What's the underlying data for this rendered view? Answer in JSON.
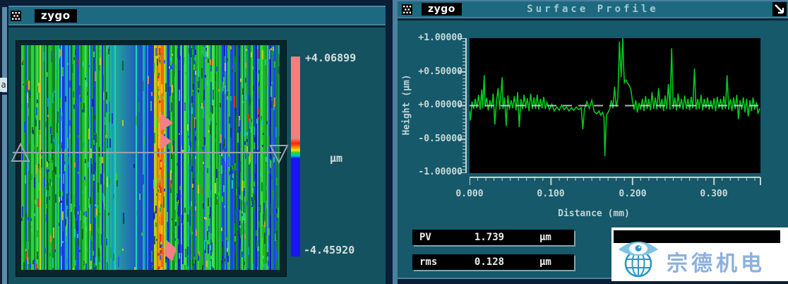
{
  "background_window": {
    "fragment_text": "a"
  },
  "left_window": {
    "titlebar": {
      "logo": "zygo"
    },
    "colorbar": {
      "max_label": "+4.06899",
      "unit_label": "µm",
      "min_label": "-4.45920",
      "top_color": "#f58078",
      "bottom_color": "#1a14f0"
    },
    "surface_map": {
      "greens": [
        "#1db32b",
        "#2bd43a",
        "#15992a",
        "#3fe04c",
        "#23c535",
        "#0f8822"
      ],
      "blues": [
        "#1b2fd8",
        "#2b50ef",
        "#0e1fb4",
        "#1847e8"
      ],
      "cyans": [
        "#12b8a0",
        "#19cfc4",
        "#0fa0b8",
        "#20d8b0"
      ],
      "accents": [
        "#d8cf1e",
        "#e8951c",
        "#e03020"
      ],
      "band_teal": "#28c08a",
      "band_blue": "#1b38d0",
      "line_colors": [
        "#f5e51a",
        "#f0a012",
        "#e86a10"
      ],
      "pink": "#f27f86",
      "marker_color": "#9aa2ac"
    }
  },
  "right_window": {
    "titlebar": {
      "logo": "zygo",
      "title": "Surface Profile"
    },
    "results": [
      {
        "name": "PV",
        "value": "1.739",
        "unit": "µm"
      },
      {
        "name": "rms",
        "value": "0.128",
        "unit": "µm"
      }
    ]
  },
  "watermark": {
    "text": "宗德机电"
  },
  "chart_data": {
    "type": "line",
    "title": "Surface Profile",
    "xlabel": "Distance (mm)",
    "ylabel": "Height (µm)",
    "xlim": [
      0,
      0.357
    ],
    "ylim": [
      -1,
      1
    ],
    "x_ticks": [
      "0.000",
      "0.100",
      "0.200",
      "0.300"
    ],
    "y_ticks": [
      "+1.00000",
      "+0.50000",
      "+0.00000",
      "-0.50000",
      "-1.00000"
    ],
    "line_color": "#00c81e",
    "zero_line": true,
    "legend": "none",
    "grid": false,
    "points": [
      [
        0.0,
        -0.08
      ],
      [
        0.001,
        -0.22
      ],
      [
        0.003,
        0.06
      ],
      [
        0.005,
        -0.05
      ],
      [
        0.007,
        0.1
      ],
      [
        0.009,
        -0.04
      ],
      [
        0.011,
        0.16
      ],
      [
        0.013,
        -0.06
      ],
      [
        0.015,
        0.24
      ],
      [
        0.016,
        -0.04
      ],
      [
        0.018,
        0.45
      ],
      [
        0.019,
        -0.02
      ],
      [
        0.021,
        0.12
      ],
      [
        0.023,
        -0.07
      ],
      [
        0.025,
        0.08
      ],
      [
        0.027,
        -0.04
      ],
      [
        0.029,
        0.18
      ],
      [
        0.031,
        -0.28
      ],
      [
        0.033,
        0.06
      ],
      [
        0.035,
        0.26
      ],
      [
        0.037,
        -0.06
      ],
      [
        0.04,
        0.42
      ],
      [
        0.041,
        -0.05
      ],
      [
        0.043,
        0.12
      ],
      [
        0.045,
        -0.3
      ],
      [
        0.047,
        0.15
      ],
      [
        0.049,
        -0.06
      ],
      [
        0.051,
        0.08
      ],
      [
        0.053,
        -0.04
      ],
      [
        0.055,
        0.14
      ],
      [
        0.057,
        -0.07
      ],
      [
        0.059,
        0.2
      ],
      [
        0.061,
        -0.32
      ],
      [
        0.063,
        0.1
      ],
      [
        0.065,
        -0.05
      ],
      [
        0.067,
        0.16
      ],
      [
        0.069,
        -0.04
      ],
      [
        0.071,
        0.11
      ],
      [
        0.073,
        -0.08
      ],
      [
        0.075,
        0.18
      ],
      [
        0.077,
        -0.05
      ],
      [
        0.079,
        0.12
      ],
      [
        0.081,
        -0.05
      ],
      [
        0.083,
        0.16
      ],
      [
        0.085,
        -0.06
      ],
      [
        0.087,
        0.1
      ],
      [
        0.089,
        -0.04
      ],
      [
        0.091,
        0.13
      ],
      [
        0.093,
        -0.05
      ],
      [
        0.095,
        0.05
      ],
      [
        0.098,
        -0.06
      ],
      [
        0.101,
        0.02
      ],
      [
        0.104,
        -0.08
      ],
      [
        0.107,
        -0.02
      ],
      [
        0.11,
        -0.07
      ],
      [
        0.113,
        0.01
      ],
      [
        0.116,
        -0.06
      ],
      [
        0.119,
        -0.02
      ],
      [
        0.122,
        -0.08
      ],
      [
        0.125,
        -0.03
      ],
      [
        0.128,
        -0.07
      ],
      [
        0.131,
        -0.02
      ],
      [
        0.134,
        -0.06
      ],
      [
        0.137,
        -0.03
      ],
      [
        0.139,
        -0.35
      ],
      [
        0.141,
        -0.05
      ],
      [
        0.144,
        0.06
      ],
      [
        0.147,
        -0.04
      ],
      [
        0.15,
        0.08
      ],
      [
        0.153,
        -0.09
      ],
      [
        0.156,
        -0.12
      ],
      [
        0.159,
        -0.08
      ],
      [
        0.161,
        -0.14
      ],
      [
        0.163,
        -0.1
      ],
      [
        0.165,
        -0.16
      ],
      [
        0.166,
        -0.75
      ],
      [
        0.168,
        -0.14
      ],
      [
        0.17,
        -0.1
      ],
      [
        0.172,
        -0.05
      ],
      [
        0.174,
        0.08
      ],
      [
        0.176,
        -0.04
      ],
      [
        0.178,
        0.28
      ],
      [
        0.18,
        -0.02
      ],
      [
        0.182,
        0.1
      ],
      [
        0.184,
        0.95
      ],
      [
        0.186,
        0.42
      ],
      [
        0.188,
        1.0
      ],
      [
        0.189,
        0.6
      ],
      [
        0.19,
        0.34
      ],
      [
        0.192,
        0.38
      ],
      [
        0.194,
        0.33
      ],
      [
        0.196,
        0.3
      ],
      [
        0.198,
        0.24
      ],
      [
        0.2,
        0.06
      ],
      [
        0.202,
        -0.06
      ],
      [
        0.204,
        0.08
      ],
      [
        0.206,
        -0.1
      ],
      [
        0.208,
        0.04
      ],
      [
        0.21,
        -0.06
      ],
      [
        0.212,
        0.1
      ],
      [
        0.214,
        -0.08
      ],
      [
        0.216,
        0.14
      ],
      [
        0.218,
        -0.05
      ],
      [
        0.22,
        0.1
      ],
      [
        0.222,
        -0.07
      ],
      [
        0.224,
        0.2
      ],
      [
        0.226,
        -0.05
      ],
      [
        0.228,
        0.12
      ],
      [
        0.23,
        -0.06
      ],
      [
        0.232,
        0.26
      ],
      [
        0.234,
        -0.04
      ],
      [
        0.236,
        0.1
      ],
      [
        0.238,
        -0.08
      ],
      [
        0.24,
        0.15
      ],
      [
        0.242,
        -0.05
      ],
      [
        0.244,
        0.32
      ],
      [
        0.246,
        -0.06
      ],
      [
        0.248,
        0.85
      ],
      [
        0.25,
        -0.05
      ],
      [
        0.252,
        0.12
      ],
      [
        0.254,
        -0.07
      ],
      [
        0.256,
        0.18
      ],
      [
        0.258,
        -0.04
      ],
      [
        0.26,
        0.1
      ],
      [
        0.262,
        -0.06
      ],
      [
        0.264,
        0.15
      ],
      [
        0.266,
        -0.05
      ],
      [
        0.268,
        0.1
      ],
      [
        0.27,
        -0.07
      ],
      [
        0.272,
        0.13
      ],
      [
        0.274,
        -0.04
      ],
      [
        0.276,
        0.55
      ],
      [
        0.278,
        -0.06
      ],
      [
        0.28,
        0.1
      ],
      [
        0.282,
        -0.05
      ],
      [
        0.284,
        0.16
      ],
      [
        0.286,
        -0.07
      ],
      [
        0.288,
        0.1
      ],
      [
        0.29,
        -0.04
      ],
      [
        0.292,
        0.12
      ],
      [
        0.294,
        -0.06
      ],
      [
        0.296,
        0.08
      ],
      [
        0.298,
        -0.05
      ],
      [
        0.3,
        0.11
      ],
      [
        0.302,
        -0.08
      ],
      [
        0.304,
        0.13
      ],
      [
        0.306,
        -0.04
      ],
      [
        0.308,
        0.1
      ],
      [
        0.31,
        -0.06
      ],
      [
        0.312,
        0.14
      ],
      [
        0.314,
        -0.05
      ],
      [
        0.316,
        0.45
      ],
      [
        0.318,
        -0.06
      ],
      [
        0.32,
        0.1
      ],
      [
        0.322,
        -0.08
      ],
      [
        0.324,
        0.12
      ],
      [
        0.326,
        -0.05
      ],
      [
        0.328,
        0.16
      ],
      [
        0.33,
        -0.2
      ],
      [
        0.332,
        0.08
      ],
      [
        0.334,
        -0.06
      ],
      [
        0.336,
        0.12
      ],
      [
        0.338,
        -0.1
      ],
      [
        0.34,
        0.1
      ],
      [
        0.342,
        -0.16
      ],
      [
        0.344,
        0.08
      ],
      [
        0.346,
        -0.08
      ],
      [
        0.348,
        0.12
      ],
      [
        0.35,
        -0.06
      ],
      [
        0.352,
        0.05
      ],
      [
        0.354,
        -0.12
      ],
      [
        0.356,
        -0.04
      ]
    ]
  }
}
